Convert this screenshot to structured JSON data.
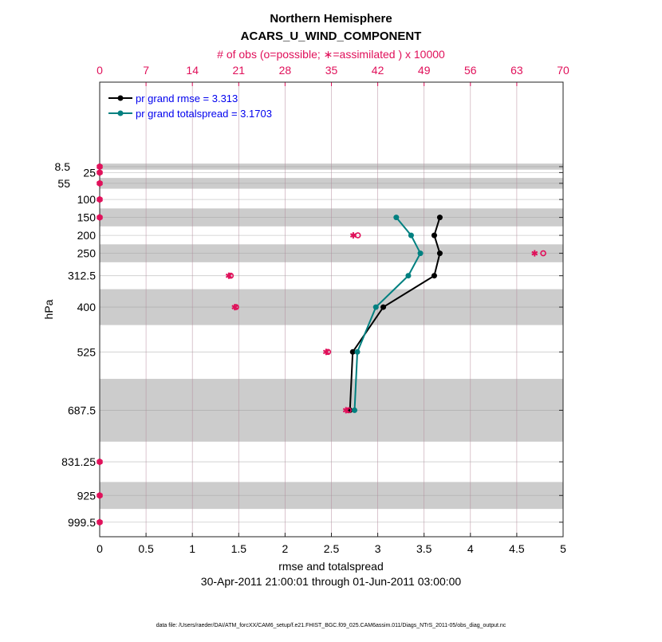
{
  "chart_data": {
    "type": "line",
    "title": "Northern Hemisphere",
    "subtitle": "ACARS_U_WIND_COMPONENT",
    "top_axis_label": "# of obs (o=possible; ∗=assimilated ) x 10000",
    "xlabel": "rmse and totalspread",
    "ylabel": "hPa",
    "date_range": "30-Apr-2011 21:00:01 through 01-Jun-2011 03:00:00",
    "footer": "data file: /Users/raeder/DAI/ATM_forcXX/CAM6_setup/f.e21.FHIST_BGC.f09_025.CAM6assim.011/Diags_NTrS_2011-05/obs_diag_output.nc",
    "xlim": [
      0,
      5
    ],
    "x_ticks": [
      "0",
      "0.5",
      "1",
      "1.5",
      "2",
      "2.5",
      "3",
      "3.5",
      "4",
      "4.5",
      "5"
    ],
    "top_xlim": [
      0,
      70
    ],
    "top_ticks": [
      "0",
      "7",
      "14",
      "21",
      "28",
      "35",
      "42",
      "49",
      "56",
      "63",
      "70"
    ],
    "ylim": [
      -227,
      1040
    ],
    "y_reversed": true,
    "levels": [
      8.5,
      25,
      55,
      100,
      150,
      200,
      250,
      312.5,
      400,
      525,
      687.5,
      831.25,
      925,
      999.5
    ],
    "level_labels": [
      "8.5",
      "25",
      "55",
      "100",
      "150",
      "200",
      "250",
      "312.5",
      "400",
      "525",
      "687.5",
      "831.25",
      "925",
      "999.5"
    ],
    "shaded_layers": [
      [
        0,
        17
      ],
      [
        40,
        70
      ],
      [
        125,
        175
      ],
      [
        225,
        275
      ],
      [
        350,
        450
      ],
      [
        600,
        775
      ],
      [
        887.5,
        962.5
      ]
    ],
    "grid": true,
    "legend_position": "top-left",
    "series": [
      {
        "name": "pr grand rmse = 3.313",
        "color": "#000000",
        "levels": [
          150,
          200,
          250,
          312.5,
          400,
          525,
          687.5
        ],
        "values": [
          3.67,
          3.61,
          3.67,
          3.61,
          3.06,
          2.73,
          2.7
        ]
      },
      {
        "name": "pr grand totalspread = 3.1703",
        "color": "#008080",
        "levels": [
          150,
          200,
          250,
          312.5,
          400,
          525,
          687.5
        ],
        "values": [
          3.2,
          3.36,
          3.46,
          3.33,
          2.98,
          2.78,
          2.75
        ]
      }
    ],
    "obs_color": "#e0105a",
    "obs_possible": [
      0,
      0,
      0,
      0,
      0,
      39.0,
      67.0,
      19.8,
      20.6,
      34.5,
      37.6,
      0,
      0,
      0
    ],
    "obs_assimilated": [
      0,
      0,
      0,
      0,
      0,
      38.3,
      65.7,
      19.5,
      20.4,
      34.2,
      37.2,
      0,
      0,
      0
    ]
  }
}
